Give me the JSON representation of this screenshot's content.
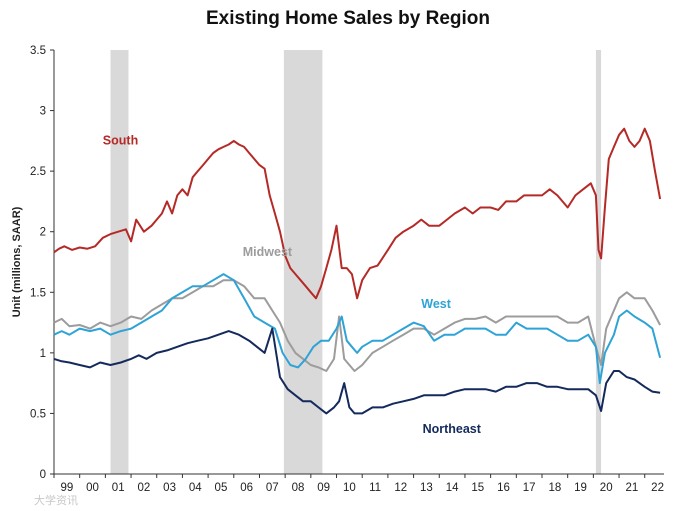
{
  "chart_data": {
    "type": "line",
    "title": "Existing Home Sales by Region",
    "xlabel": "",
    "ylabel": "Unit (millions, SAAR)",
    "xlim": [
      1999.0,
      2022.75
    ],
    "ylim": [
      0,
      3.5
    ],
    "yticks": [
      0,
      0.5,
      1,
      1.5,
      2,
      2.5,
      3,
      3.5
    ],
    "ytick_labels": [
      "0",
      "0.5",
      "1",
      "1.5",
      "2",
      "2.5",
      "3",
      "3.5"
    ],
    "xtick_labels": [
      "99",
      "00",
      "01",
      "02",
      "03",
      "04",
      "05",
      "06",
      "07",
      "08",
      "09",
      "10",
      "11",
      "12",
      "13",
      "14",
      "15",
      "16",
      "17",
      "18",
      "19",
      "20",
      "21",
      "22"
    ],
    "xtick_years": [
      1999,
      2000,
      2001,
      2002,
      2003,
      2004,
      2005,
      2006,
      2007,
      2008,
      2009,
      2010,
      2011,
      2012,
      2013,
      2014,
      2015,
      2016,
      2017,
      2018,
      2019,
      2020,
      2021,
      2022
    ],
    "recessions": [
      [
        2001.2,
        2001.9
      ],
      [
        2007.95,
        2009.45
      ],
      [
        2020.1,
        2020.3
      ]
    ],
    "recession_color": "#d9d9d9",
    "series": [
      {
        "name": "South",
        "color": "#b52a26",
        "x": [
          1999.0,
          1999.2,
          1999.4,
          1999.7,
          2000.0,
          2000.3,
          2000.6,
          2000.9,
          2001.2,
          2001.5,
          2001.8,
          2002.0,
          2002.2,
          2002.5,
          2002.8,
          2003.0,
          2003.2,
          2003.4,
          2003.6,
          2003.8,
          2004.0,
          2004.2,
          2004.4,
          2004.6,
          2004.8,
          2005.0,
          2005.2,
          2005.4,
          2005.6,
          2005.8,
          2006.0,
          2006.2,
          2006.4,
          2006.6,
          2006.8,
          2007.0,
          2007.2,
          2007.4,
          2007.6,
          2007.8,
          2008.0,
          2008.2,
          2008.4,
          2008.6,
          2008.8,
          2009.0,
          2009.2,
          2009.4,
          2009.6,
          2009.8,
          2010.0,
          2010.2,
          2010.4,
          2010.6,
          2010.8,
          2011.0,
          2011.3,
          2011.6,
          2012.0,
          2012.3,
          2012.6,
          2013.0,
          2013.3,
          2013.6,
          2014.0,
          2014.3,
          2014.6,
          2015.0,
          2015.3,
          2015.6,
          2016.0,
          2016.3,
          2016.6,
          2017.0,
          2017.3,
          2017.6,
          2018.0,
          2018.3,
          2018.6,
          2019.0,
          2019.3,
          2019.6,
          2019.9,
          2020.1,
          2020.2,
          2020.3,
          2020.45,
          2020.6,
          2020.8,
          2021.0,
          2021.2,
          2021.4,
          2021.6,
          2021.8,
          2022.0,
          2022.2,
          2022.4,
          2022.6
        ],
        "values": [
          1.83,
          1.86,
          1.88,
          1.85,
          1.87,
          1.86,
          1.88,
          1.95,
          1.98,
          2.0,
          2.02,
          1.92,
          2.1,
          2.0,
          2.05,
          2.1,
          2.15,
          2.25,
          2.15,
          2.3,
          2.35,
          2.3,
          2.45,
          2.5,
          2.55,
          2.6,
          2.65,
          2.68,
          2.7,
          2.72,
          2.75,
          2.72,
          2.7,
          2.65,
          2.6,
          2.55,
          2.52,
          2.3,
          2.15,
          2.0,
          1.8,
          1.7,
          1.65,
          1.6,
          1.55,
          1.5,
          1.45,
          1.55,
          1.7,
          1.85,
          2.05,
          1.7,
          1.7,
          1.65,
          1.45,
          1.6,
          1.7,
          1.72,
          1.85,
          1.95,
          2.0,
          2.05,
          2.1,
          2.05,
          2.05,
          2.1,
          2.15,
          2.2,
          2.15,
          2.2,
          2.2,
          2.18,
          2.25,
          2.25,
          2.3,
          2.3,
          2.3,
          2.35,
          2.3,
          2.2,
          2.3,
          2.35,
          2.4,
          2.3,
          1.85,
          1.78,
          2.2,
          2.6,
          2.7,
          2.8,
          2.85,
          2.75,
          2.7,
          2.75,
          2.85,
          2.75,
          2.5,
          2.27
        ]
      },
      {
        "name": "Midwest",
        "color": "#9c9c9c",
        "x": [
          1999.0,
          1999.3,
          1999.6,
          2000.0,
          2000.4,
          2000.8,
          2001.2,
          2001.6,
          2002.0,
          2002.4,
          2002.8,
          2003.2,
          2003.6,
          2004.0,
          2004.4,
          2004.8,
          2005.2,
          2005.6,
          2006.0,
          2006.4,
          2006.8,
          2007.2,
          2007.5,
          2007.8,
          2008.1,
          2008.4,
          2008.7,
          2009.0,
          2009.3,
          2009.6,
          2009.9,
          2010.1,
          2010.3,
          2010.5,
          2010.7,
          2011.0,
          2011.4,
          2011.8,
          2012.2,
          2012.6,
          2013.0,
          2013.4,
          2013.8,
          2014.2,
          2014.6,
          2015.0,
          2015.4,
          2015.8,
          2016.2,
          2016.6,
          2017.0,
          2017.4,
          2017.8,
          2018.2,
          2018.6,
          2019.0,
          2019.4,
          2019.8,
          2020.1,
          2020.3,
          2020.5,
          2020.8,
          2021.0,
          2021.3,
          2021.6,
          2022.0,
          2022.3,
          2022.6
        ],
        "values": [
          1.25,
          1.28,
          1.22,
          1.23,
          1.2,
          1.25,
          1.22,
          1.25,
          1.3,
          1.28,
          1.35,
          1.4,
          1.45,
          1.45,
          1.5,
          1.55,
          1.55,
          1.6,
          1.6,
          1.55,
          1.45,
          1.45,
          1.35,
          1.25,
          1.1,
          1.0,
          0.95,
          0.9,
          0.88,
          0.85,
          0.95,
          1.3,
          0.95,
          0.9,
          0.85,
          0.9,
          1.0,
          1.05,
          1.1,
          1.15,
          1.2,
          1.2,
          1.15,
          1.2,
          1.25,
          1.28,
          1.28,
          1.3,
          1.25,
          1.3,
          1.3,
          1.3,
          1.3,
          1.3,
          1.3,
          1.25,
          1.25,
          1.3,
          1.05,
          0.9,
          1.2,
          1.35,
          1.45,
          1.5,
          1.45,
          1.45,
          1.35,
          1.23
        ]
      },
      {
        "name": "West",
        "color": "#2ea3d6",
        "x": [
          1999.0,
          1999.3,
          1999.6,
          2000.0,
          2000.4,
          2000.8,
          2001.2,
          2001.6,
          2002.0,
          2002.4,
          2002.8,
          2003.2,
          2003.6,
          2004.0,
          2004.4,
          2004.8,
          2005.2,
          2005.6,
          2006.0,
          2006.4,
          2006.8,
          2007.2,
          2007.6,
          2007.9,
          2008.2,
          2008.5,
          2008.8,
          2009.1,
          2009.4,
          2009.7,
          2010.0,
          2010.2,
          2010.4,
          2010.6,
          2010.8,
          2011.0,
          2011.4,
          2011.8,
          2012.2,
          2012.6,
          2013.0,
          2013.4,
          2013.8,
          2014.2,
          2014.6,
          2015.0,
          2015.4,
          2015.8,
          2016.2,
          2016.6,
          2017.0,
          2017.4,
          2017.8,
          2018.2,
          2018.6,
          2019.0,
          2019.4,
          2019.8,
          2020.1,
          2020.25,
          2020.45,
          2020.8,
          2021.0,
          2021.3,
          2021.6,
          2022.0,
          2022.3,
          2022.6
        ],
        "values": [
          1.15,
          1.18,
          1.15,
          1.2,
          1.18,
          1.2,
          1.15,
          1.18,
          1.2,
          1.25,
          1.3,
          1.35,
          1.45,
          1.5,
          1.55,
          1.55,
          1.6,
          1.65,
          1.6,
          1.45,
          1.3,
          1.25,
          1.2,
          1.0,
          0.9,
          0.88,
          0.95,
          1.05,
          1.1,
          1.1,
          1.2,
          1.3,
          1.1,
          1.05,
          1.0,
          1.05,
          1.1,
          1.1,
          1.15,
          1.2,
          1.25,
          1.22,
          1.1,
          1.15,
          1.15,
          1.2,
          1.2,
          1.2,
          1.15,
          1.15,
          1.25,
          1.2,
          1.2,
          1.2,
          1.15,
          1.1,
          1.1,
          1.15,
          1.05,
          0.75,
          1.0,
          1.15,
          1.3,
          1.35,
          1.3,
          1.25,
          1.2,
          0.96
        ]
      },
      {
        "name": "Northeast",
        "color": "#14295c",
        "x": [
          1999.0,
          1999.3,
          1999.6,
          2000.0,
          2000.4,
          2000.8,
          2001.2,
          2001.6,
          2002.0,
          2002.3,
          2002.6,
          2003.0,
          2003.4,
          2003.8,
          2004.2,
          2004.6,
          2005.0,
          2005.4,
          2005.8,
          2006.2,
          2006.6,
          2006.9,
          2007.2,
          2007.5,
          2007.8,
          2008.1,
          2008.4,
          2008.7,
          2009.0,
          2009.3,
          2009.6,
          2009.9,
          2010.1,
          2010.3,
          2010.5,
          2010.7,
          2011.0,
          2011.4,
          2011.8,
          2012.2,
          2012.6,
          2013.0,
          2013.4,
          2013.8,
          2014.2,
          2014.6,
          2015.0,
          2015.4,
          2015.8,
          2016.2,
          2016.6,
          2017.0,
          2017.4,
          2017.8,
          2018.2,
          2018.6,
          2019.0,
          2019.4,
          2019.8,
          2020.1,
          2020.3,
          2020.5,
          2020.8,
          2021.0,
          2021.3,
          2021.6,
          2022.0,
          2022.3,
          2022.6
        ],
        "values": [
          0.95,
          0.93,
          0.92,
          0.9,
          0.88,
          0.92,
          0.9,
          0.92,
          0.95,
          0.98,
          0.95,
          1.0,
          1.02,
          1.05,
          1.08,
          1.1,
          1.12,
          1.15,
          1.18,
          1.15,
          1.1,
          1.05,
          1.0,
          1.2,
          0.8,
          0.7,
          0.65,
          0.6,
          0.6,
          0.55,
          0.5,
          0.55,
          0.6,
          0.75,
          0.55,
          0.5,
          0.5,
          0.55,
          0.55,
          0.58,
          0.6,
          0.62,
          0.65,
          0.65,
          0.65,
          0.68,
          0.7,
          0.7,
          0.7,
          0.68,
          0.72,
          0.72,
          0.75,
          0.75,
          0.72,
          0.72,
          0.7,
          0.7,
          0.7,
          0.65,
          0.52,
          0.75,
          0.85,
          0.85,
          0.8,
          0.78,
          0.72,
          0.68,
          0.67
        ]
      }
    ],
    "series_labels": [
      {
        "name": "South",
        "text": "South",
        "x": 2000.9,
        "y": 2.72
      },
      {
        "name": "Midwest",
        "text": "Midwest",
        "x": 2006.35,
        "y": 1.8
      },
      {
        "name": "West",
        "text": "West",
        "x": 2013.3,
        "y": 1.37
      },
      {
        "name": "Northeast",
        "text": "Northeast",
        "x": 2013.35,
        "y": 0.34
      }
    ]
  },
  "watermark": "大学资讯"
}
